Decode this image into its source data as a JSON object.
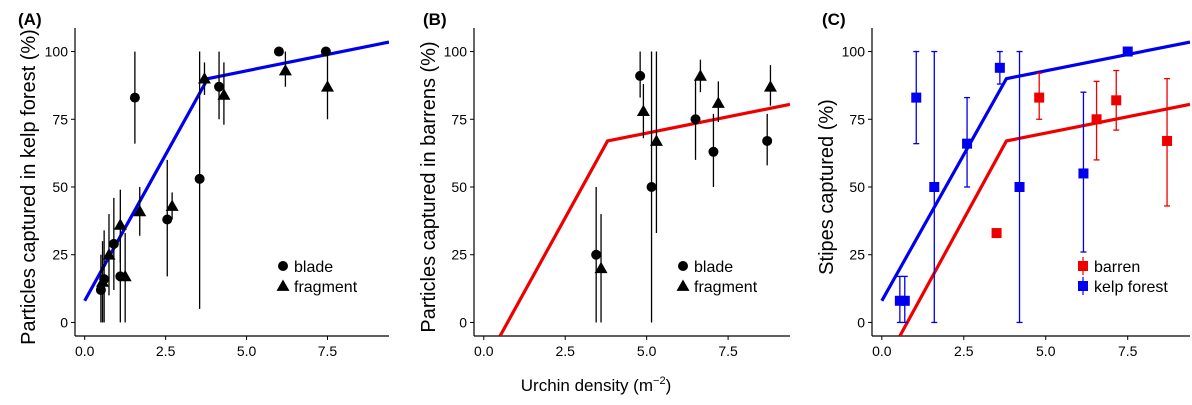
{
  "figure": {
    "xlabel_main": "Urchin density (m",
    "xlabel_sup": "−2",
    "xlabel_close": ")"
  },
  "chart_data": [
    {
      "panel": "(A)",
      "type": "scatter",
      "ylabel": "Particles captured in kelp forest (%)",
      "xlim": [
        -0.3,
        9.4
      ],
      "ylim": [
        -5,
        105
      ],
      "xticks": [
        "0.0",
        "2.5",
        "5.0",
        "7.5"
      ],
      "yticks": [
        "0",
        "25",
        "50",
        "75",
        "100"
      ],
      "grid": false,
      "legend_position": "bottom-right",
      "legend": [
        "blade",
        "fragment"
      ],
      "fit": {
        "color": "#0000ee",
        "points": [
          [
            0.0,
            8
          ],
          [
            3.8,
            90
          ],
          [
            9.4,
            103.5
          ]
        ]
      },
      "series": [
        {
          "name": "blade",
          "marker": "circle",
          "color": "#000000",
          "points": [
            {
              "x": 0.5,
              "y": 12,
              "lo": 0,
              "hi": 25
            },
            {
              "x": 0.6,
              "y": 16,
              "lo": 0,
              "hi": 34
            },
            {
              "x": 0.9,
              "y": 29,
              "lo": 12,
              "hi": 46
            },
            {
              "x": 1.1,
              "y": 17,
              "lo": 0,
              "hi": 33
            },
            {
              "x": 1.55,
              "y": 83,
              "lo": 66,
              "hi": 100
            },
            {
              "x": 2.55,
              "y": 38,
              "lo": 17,
              "hi": 60
            },
            {
              "x": 3.55,
              "y": 53,
              "lo": 5,
              "hi": 100
            },
            {
              "x": 4.15,
              "y": 87,
              "lo": 75,
              "hi": 100
            },
            {
              "x": 6.0,
              "y": 100,
              "lo": 100,
              "hi": 100
            },
            {
              "x": 7.45,
              "y": 100,
              "lo": 100,
              "hi": 100
            }
          ]
        },
        {
          "name": "fragment",
          "marker": "triangle",
          "color": "#000000",
          "points": [
            {
              "x": 0.55,
              "y": 15,
              "lo": 0,
              "hi": 30
            },
            {
              "x": 0.75,
              "y": 25,
              "lo": 10,
              "hi": 40
            },
            {
              "x": 1.1,
              "y": 36,
              "lo": 22,
              "hi": 49
            },
            {
              "x": 1.25,
              "y": 17,
              "lo": 0,
              "hi": 33
            },
            {
              "x": 1.7,
              "y": 41,
              "lo": 32,
              "hi": 50
            },
            {
              "x": 2.7,
              "y": 43,
              "lo": 38,
              "hi": 48
            },
            {
              "x": 3.7,
              "y": 90,
              "lo": 84,
              "hi": 96
            },
            {
              "x": 4.3,
              "y": 84,
              "lo": 73,
              "hi": 96
            },
            {
              "x": 6.2,
              "y": 93,
              "lo": 87,
              "hi": 100
            },
            {
              "x": 7.5,
              "y": 87,
              "lo": 75,
              "hi": 100
            }
          ]
        }
      ]
    },
    {
      "panel": "(B)",
      "type": "scatter",
      "ylabel": "Particles captured in barrens (%)",
      "xlim": [
        -0.3,
        9.4
      ],
      "ylim": [
        -5,
        105
      ],
      "xticks": [
        "0.0",
        "2.5",
        "5.0",
        "7.5"
      ],
      "yticks": [
        "0",
        "25",
        "50",
        "75",
        "100"
      ],
      "grid": false,
      "legend_position": "bottom-right",
      "legend": [
        "blade",
        "fragment"
      ],
      "fit": {
        "color": "#ee0000",
        "points": [
          [
            0.5,
            -5
          ],
          [
            3.8,
            67
          ],
          [
            9.4,
            80.5
          ]
        ]
      },
      "series": [
        {
          "name": "blade",
          "marker": "circle",
          "color": "#000000",
          "points": [
            {
              "x": 3.45,
              "y": 25,
              "lo": 0,
              "hi": 50
            },
            {
              "x": 4.8,
              "y": 91,
              "lo": 83,
              "hi": 100
            },
            {
              "x": 5.15,
              "y": 50,
              "lo": 0,
              "hi": 100
            },
            {
              "x": 6.5,
              "y": 75,
              "lo": 60,
              "hi": 90
            },
            {
              "x": 7.05,
              "y": 63,
              "lo": 50,
              "hi": 77
            },
            {
              "x": 8.7,
              "y": 67,
              "lo": 58,
              "hi": 77
            }
          ]
        },
        {
          "name": "fragment",
          "marker": "triangle",
          "color": "#000000",
          "points": [
            {
              "x": 3.6,
              "y": 20,
              "lo": 0,
              "hi": 40
            },
            {
              "x": 4.9,
              "y": 78,
              "lo": 68,
              "hi": 88
            },
            {
              "x": 5.3,
              "y": 67,
              "lo": 33,
              "hi": 100
            },
            {
              "x": 6.65,
              "y": 91,
              "lo": 85,
              "hi": 97
            },
            {
              "x": 7.2,
              "y": 81,
              "lo": 74,
              "hi": 89
            },
            {
              "x": 8.8,
              "y": 87,
              "lo": 80,
              "hi": 95
            }
          ]
        }
      ]
    },
    {
      "panel": "(C)",
      "type": "scatter",
      "ylabel": "Stipes captured (%)",
      "xlim": [
        -0.3,
        9.4
      ],
      "ylim": [
        -5,
        105
      ],
      "xticks": [
        "0.0",
        "2.5",
        "5.0",
        "7.5"
      ],
      "yticks": [
        "0",
        "25",
        "50",
        "75",
        "100"
      ],
      "grid": false,
      "legend_position": "bottom-right",
      "legend": [
        "barren",
        "kelp forest"
      ],
      "fits": [
        {
          "color": "#ee0000",
          "points": [
            [
              0.55,
              -5
            ],
            [
              3.8,
              67
            ],
            [
              9.4,
              80.5
            ]
          ]
        },
        {
          "color": "#0000ee",
          "points": [
            [
              0.0,
              8
            ],
            [
              3.8,
              90
            ],
            [
              9.4,
              103.5
            ]
          ]
        }
      ],
      "series": [
        {
          "name": "barren",
          "marker": "square",
          "color": "#ee0000",
          "points": [
            {
              "x": 3.5,
              "y": 33,
              "lo": 33,
              "hi": 33
            },
            {
              "x": 4.8,
              "y": 83,
              "lo": 75,
              "hi": 92
            },
            {
              "x": 6.55,
              "y": 75,
              "lo": 60,
              "hi": 89
            },
            {
              "x": 7.15,
              "y": 82,
              "lo": 71,
              "hi": 93
            },
            {
              "x": 8.7,
              "y": 67,
              "lo": 43,
              "hi": 90
            }
          ]
        },
        {
          "name": "kelp forest",
          "marker": "square",
          "color": "#0000ee",
          "points": [
            {
              "x": 0.55,
              "y": 8,
              "lo": 0,
              "hi": 17
            },
            {
              "x": 0.7,
              "y": 8,
              "lo": 0,
              "hi": 17
            },
            {
              "x": 1.05,
              "y": 83,
              "lo": 66,
              "hi": 100
            },
            {
              "x": 1.6,
              "y": 50,
              "lo": 0,
              "hi": 100
            },
            {
              "x": 2.6,
              "y": 66,
              "lo": 50,
              "hi": 83
            },
            {
              "x": 3.6,
              "y": 94,
              "lo": 88,
              "hi": 100
            },
            {
              "x": 4.2,
              "y": 50,
              "lo": 0,
              "hi": 100
            },
            {
              "x": 6.15,
              "y": 55,
              "lo": 26,
              "hi": 85
            },
            {
              "x": 7.5,
              "y": 100,
              "lo": 100,
              "hi": 100
            }
          ]
        }
      ]
    }
  ]
}
